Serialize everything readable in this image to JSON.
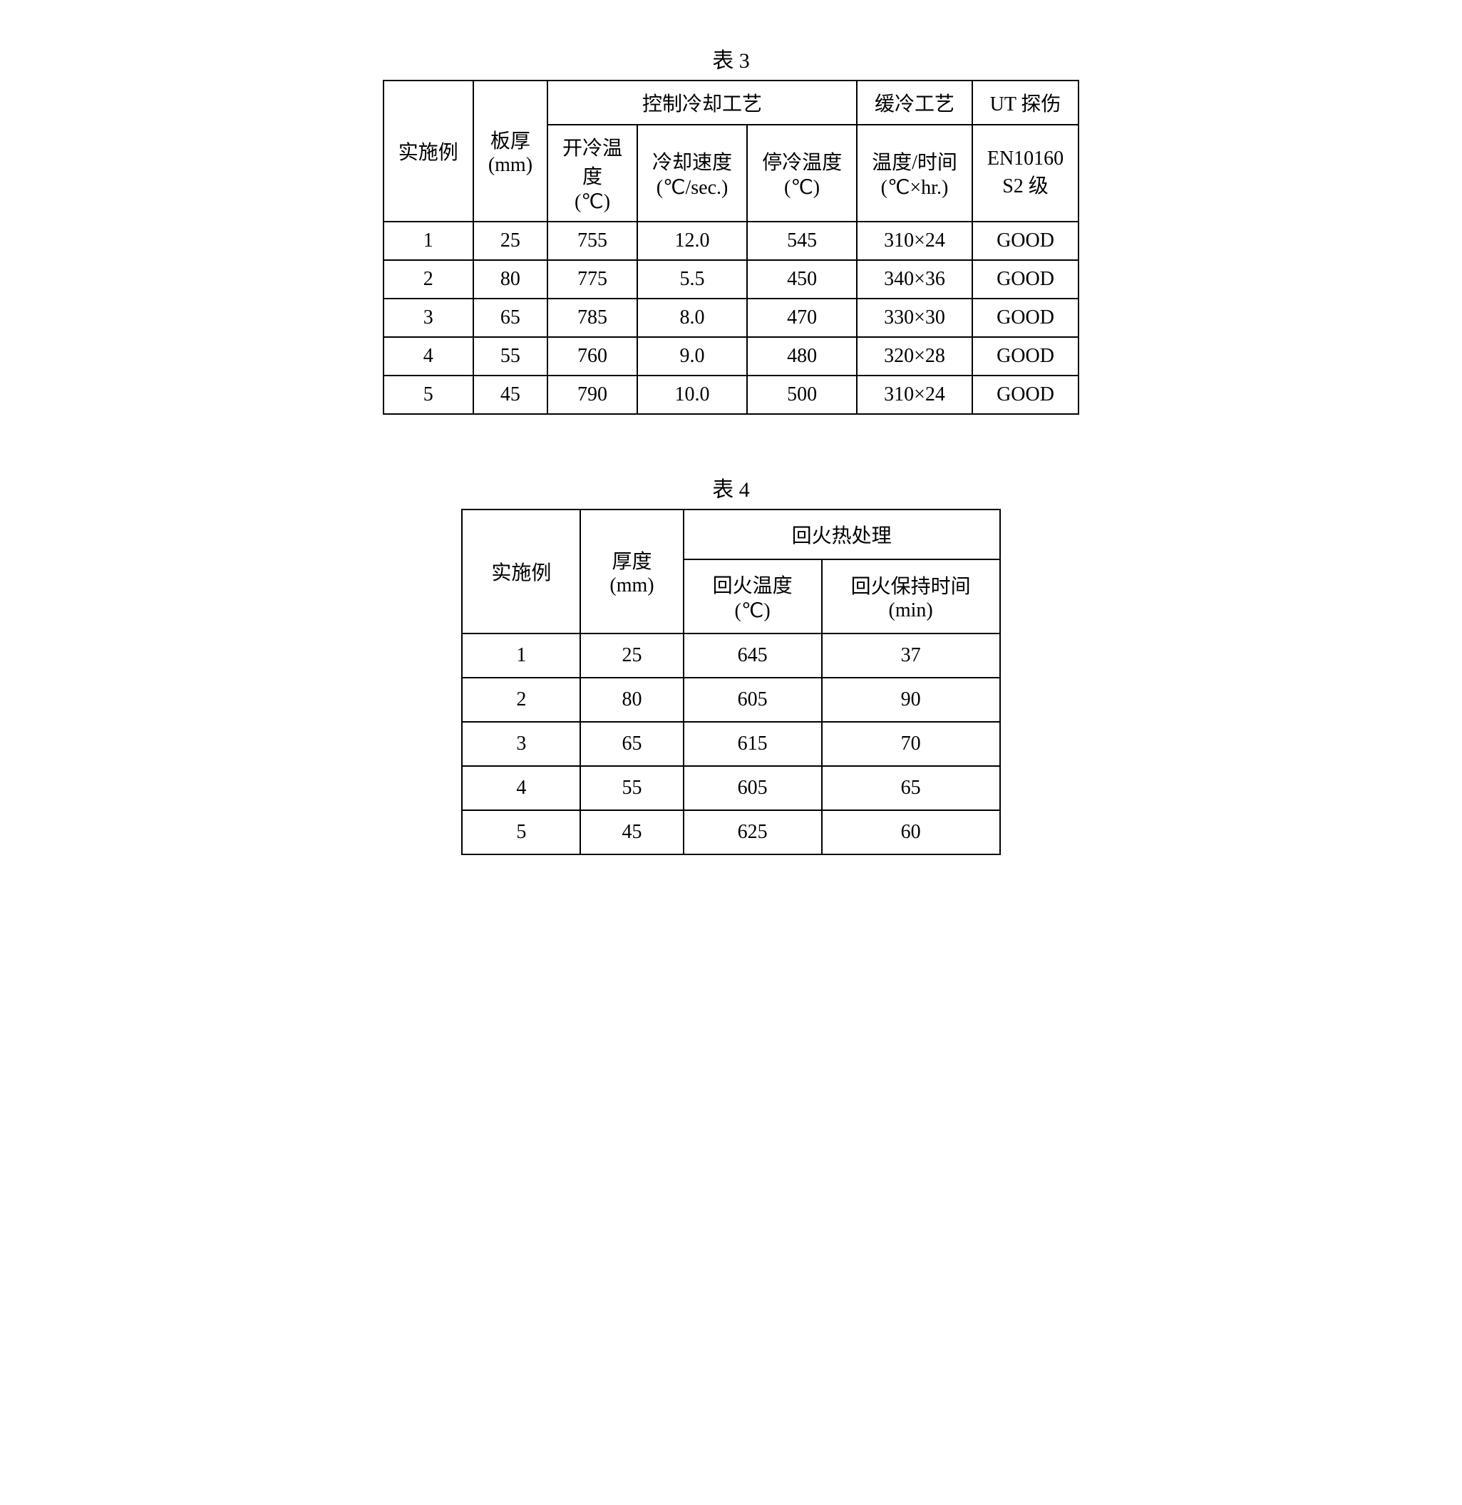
{
  "table3": {
    "caption": "表 3",
    "headers": {
      "col1": "实施例",
      "col2": "板厚\n(mm)",
      "group1": "控制冷却工艺",
      "group1_sub1": "开冷温\n度\n(℃)",
      "group1_sub2": "冷却速度\n(℃/sec.)",
      "group1_sub3": "停冷温度\n(℃)",
      "col6": "缓冷工艺",
      "col6_sub": "温度/时间\n(℃×hr.)",
      "col7": "UT 探伤",
      "col7_sub": "EN10160\nS2 级"
    },
    "rows": [
      {
        "ex": "1",
        "thick": "25",
        "start": "755",
        "rate": "12.0",
        "stop": "545",
        "slow": "310×24",
        "ut": "GOOD"
      },
      {
        "ex": "2",
        "thick": "80",
        "start": "775",
        "rate": "5.5",
        "stop": "450",
        "slow": "340×36",
        "ut": "GOOD"
      },
      {
        "ex": "3",
        "thick": "65",
        "start": "785",
        "rate": "8.0",
        "stop": "470",
        "slow": "330×30",
        "ut": "GOOD"
      },
      {
        "ex": "4",
        "thick": "55",
        "start": "760",
        "rate": "9.0",
        "stop": "480",
        "slow": "320×28",
        "ut": "GOOD"
      },
      {
        "ex": "5",
        "thick": "45",
        "start": "790",
        "rate": "10.0",
        "stop": "500",
        "slow": "310×24",
        "ut": "GOOD"
      }
    ]
  },
  "table4": {
    "caption": "表 4",
    "headers": {
      "col1": "实施例",
      "col2": "厚度\n(mm)",
      "group1": "回火热处理",
      "group1_sub1": "回火温度\n(℃)",
      "group1_sub2": "回火保持时间\n(min)"
    },
    "rows": [
      {
        "ex": "1",
        "thick": "25",
        "temp": "645",
        "time": "37"
      },
      {
        "ex": "2",
        "thick": "80",
        "temp": "605",
        "time": "90"
      },
      {
        "ex": "3",
        "thick": "65",
        "temp": "615",
        "time": "70"
      },
      {
        "ex": "4",
        "thick": "55",
        "temp": "605",
        "time": "65"
      },
      {
        "ex": "5",
        "thick": "45",
        "temp": "625",
        "time": "60"
      }
    ]
  }
}
